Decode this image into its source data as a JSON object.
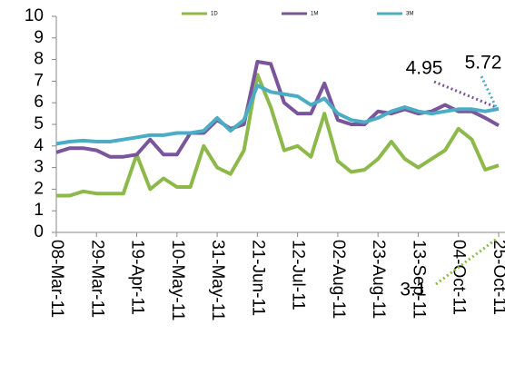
{
  "chart_data": {
    "type": "line",
    "categories": [
      "08-Mar-11",
      null,
      null,
      "29-Mar-11",
      null,
      null,
      "19-Apr-11",
      null,
      null,
      "10-May-11",
      null,
      null,
      "31-May-11",
      null,
      null,
      "21-Jun-11",
      null,
      null,
      "12-Jul-11",
      null,
      null,
      "02-Aug-11",
      null,
      null,
      "23-Aug-11",
      null,
      null,
      "13-Sep-11",
      null,
      null,
      "04-Oct-11",
      null,
      null,
      "25-Oct-11"
    ],
    "series": [
      {
        "name": "1D",
        "color": "#8db94a",
        "values": [
          1.7,
          1.7,
          1.9,
          1.8,
          1.8,
          1.8,
          3.6,
          2.0,
          2.5,
          2.1,
          2.1,
          4.0,
          3.0,
          2.7,
          3.8,
          7.3,
          5.8,
          3.8,
          4.0,
          3.5,
          5.5,
          3.3,
          2.8,
          2.9,
          3.4,
          4.2,
          3.4,
          3.0,
          3.4,
          3.8,
          4.8,
          4.3,
          2.9,
          3.1
        ]
      },
      {
        "name": "1M",
        "color": "#7a559b",
        "values": [
          3.7,
          3.9,
          3.9,
          3.8,
          3.5,
          3.5,
          3.6,
          4.3,
          3.6,
          3.6,
          4.6,
          4.6,
          5.2,
          4.8,
          5.0,
          7.9,
          7.8,
          6.0,
          5.5,
          5.5,
          6.9,
          5.2,
          5.0,
          5.0,
          5.6,
          5.5,
          5.7,
          5.5,
          5.6,
          5.9,
          5.6,
          5.6,
          5.3,
          4.95
        ]
      },
      {
        "name": "3M",
        "color": "#4bacc6",
        "values": [
          4.1,
          4.2,
          4.25,
          4.2,
          4.2,
          4.3,
          4.4,
          4.5,
          4.5,
          4.6,
          4.6,
          4.7,
          5.3,
          4.7,
          5.2,
          6.8,
          6.5,
          6.4,
          6.3,
          5.9,
          6.2,
          5.5,
          5.2,
          5.1,
          5.3,
          5.6,
          5.8,
          5.6,
          5.5,
          5.6,
          5.7,
          5.7,
          5.6,
          5.72
        ]
      }
    ],
    "ylim": [
      0,
      10
    ],
    "yticks": [
      0,
      1,
      2,
      3,
      4,
      5,
      6,
      7,
      8,
      9,
      10
    ],
    "annotations": [
      "4.95",
      "5.72",
      "3.1"
    ]
  }
}
